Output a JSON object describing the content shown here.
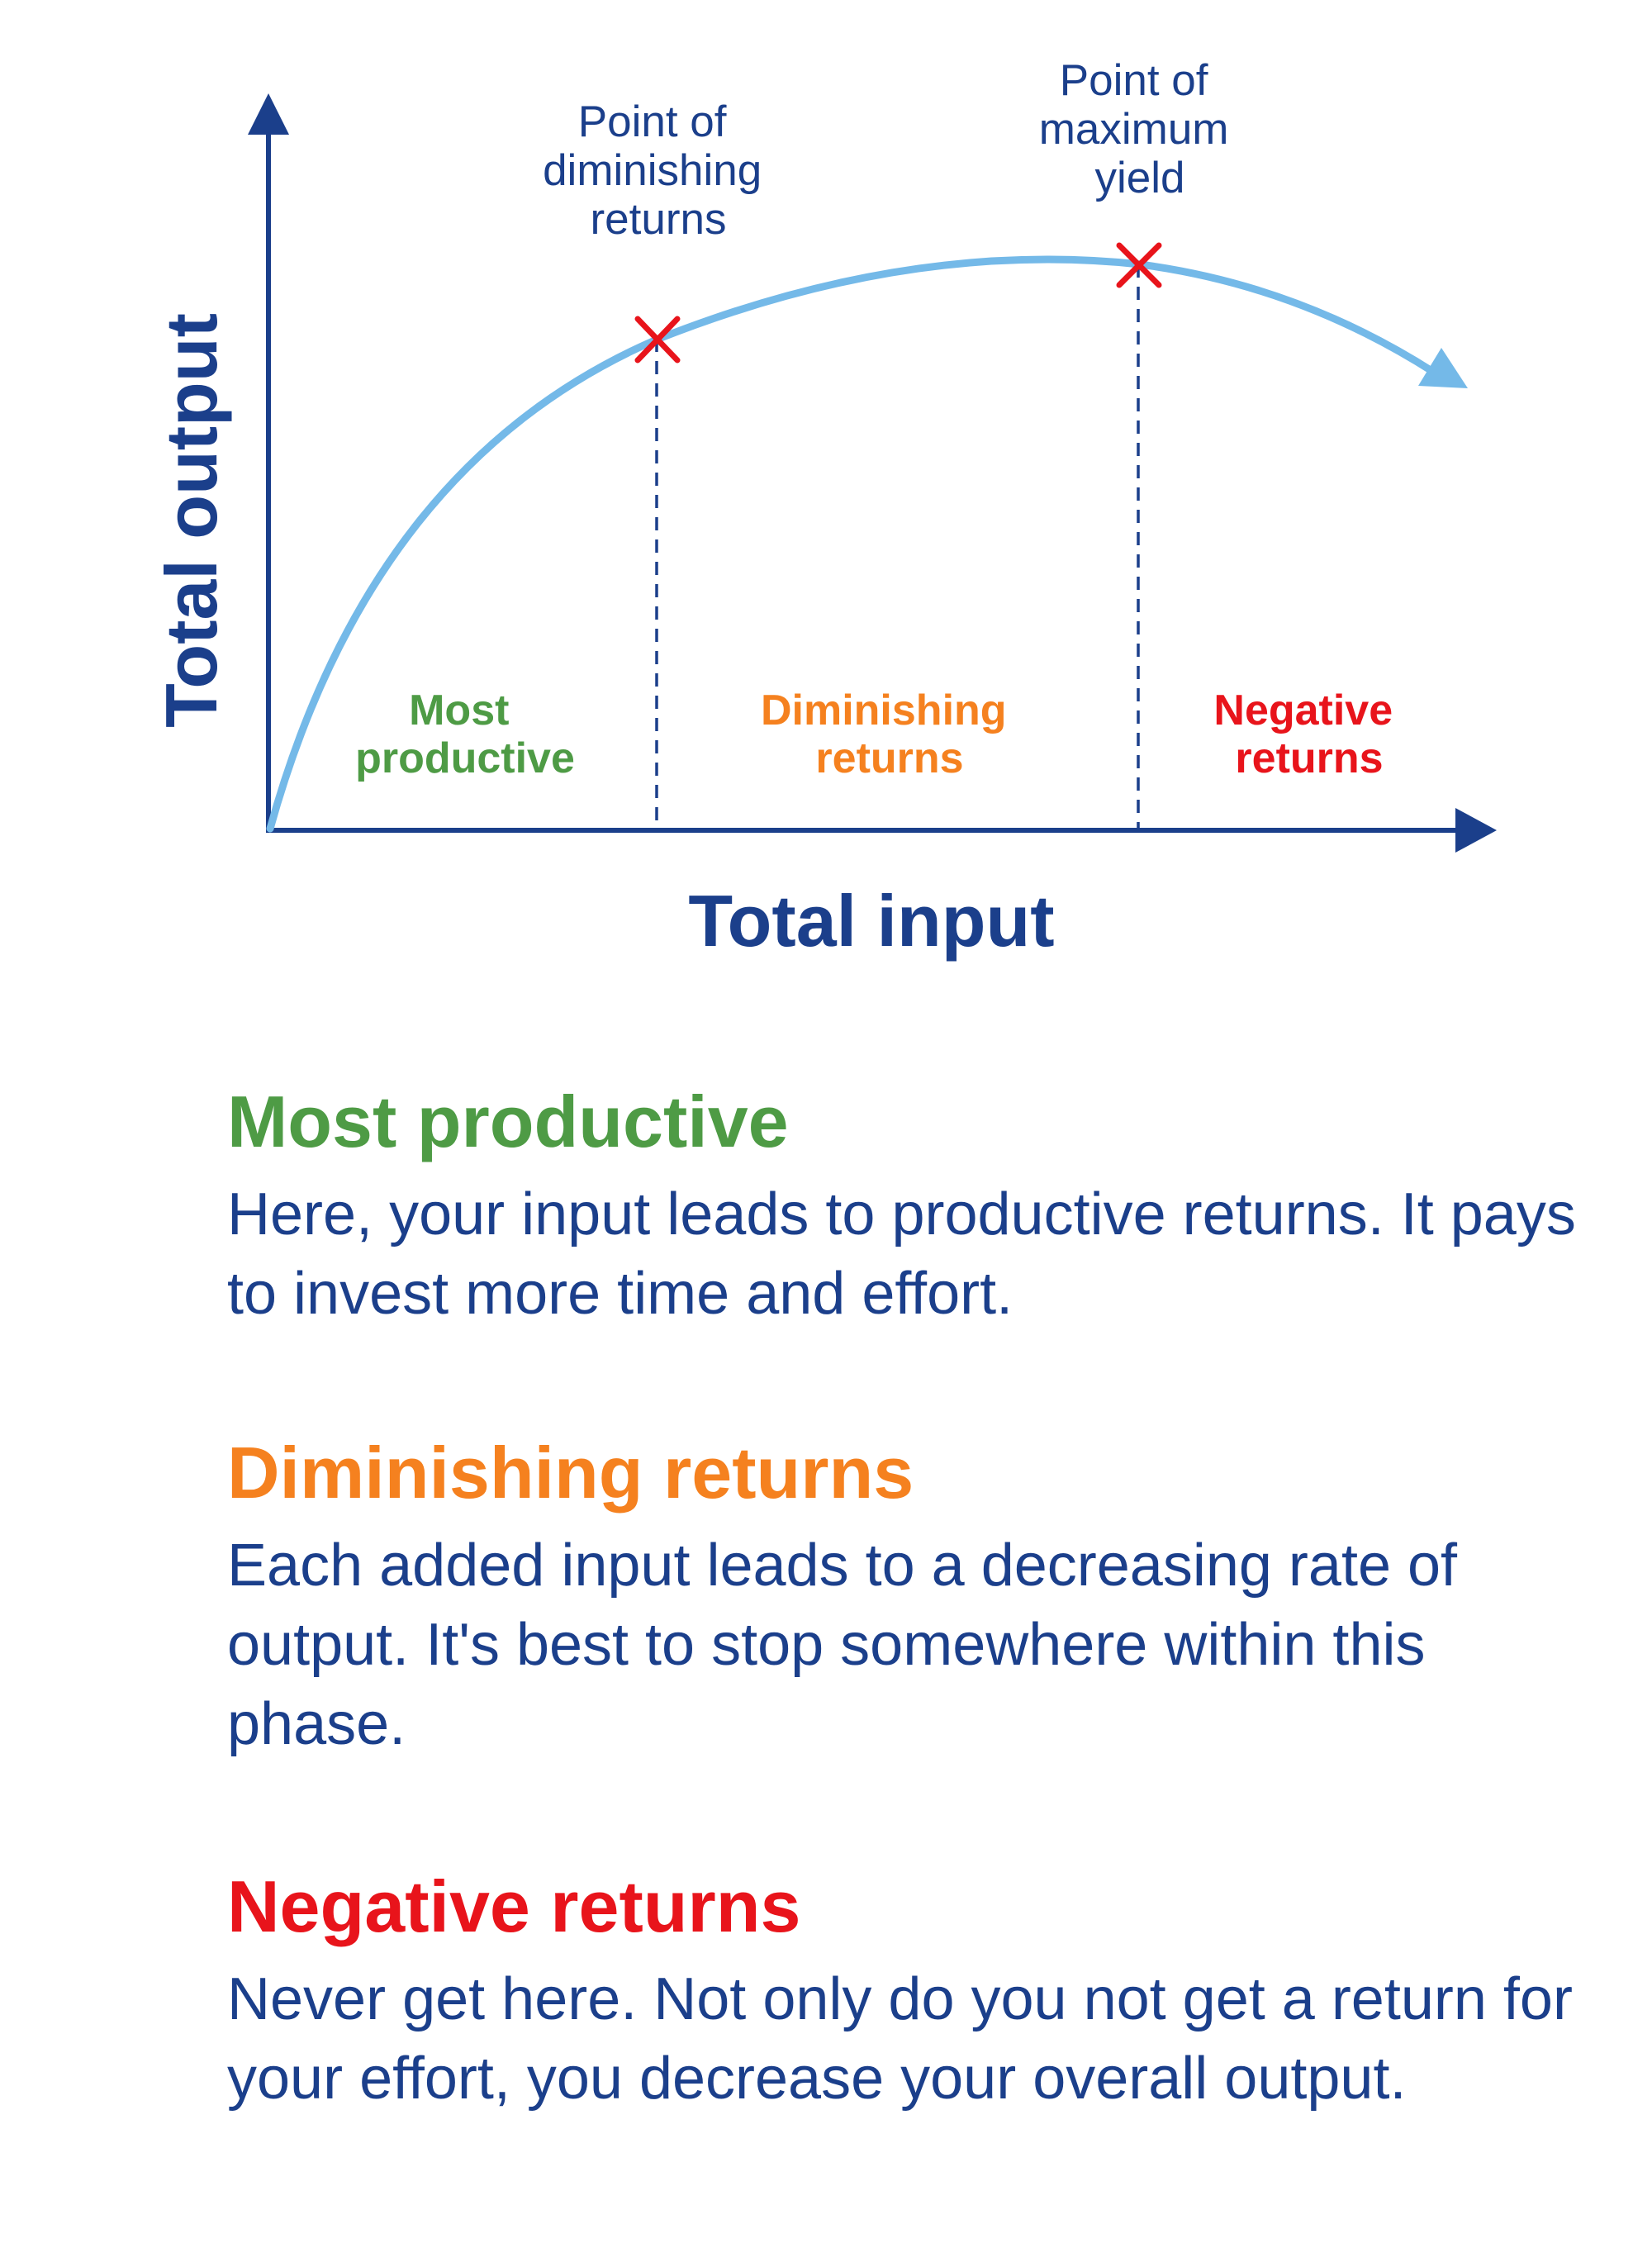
{
  "diagram": {
    "axis_x_label": "Total input",
    "axis_y_label": "Total output",
    "points": [
      {
        "label_lines": [
          "Point of",
          "diminishing",
          "returns"
        ]
      },
      {
        "label_lines": [
          "Point of",
          "maximum",
          "yield"
        ]
      }
    ],
    "regions": [
      {
        "lines": [
          "Most",
          "productive"
        ],
        "color": "#4e9b45"
      },
      {
        "lines": [
          "Diminishing",
          "returns"
        ],
        "color": "#f5811f"
      },
      {
        "lines": [
          "Negative",
          "returns"
        ],
        "color": "#e8141b"
      }
    ],
    "colors": {
      "axis": "#1b3f8b",
      "curve": "#74b9e8",
      "marker": "#e8141b"
    }
  },
  "legend": [
    {
      "title": "Most productive",
      "description": "Here, your input leads to productive returns. It pays to invest more time and effort.",
      "color": "#4e9b45"
    },
    {
      "title": "Diminishing returns",
      "description": "Each added input leads to a decreasing rate of output. It's best to stop somewhere within this phase.",
      "color": "#f5811f"
    },
    {
      "title": "Negative returns",
      "description": "Never get here. Not only do you not get a return for your effort, you decrease your overall output.",
      "color": "#e8141b"
    }
  ]
}
